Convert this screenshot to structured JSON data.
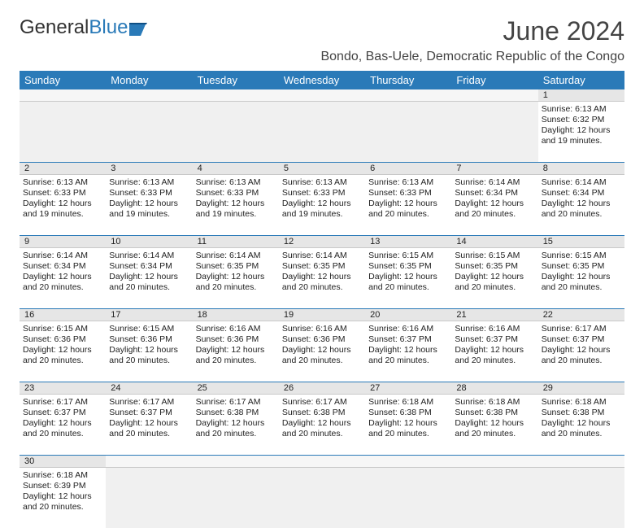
{
  "brand": {
    "part1": "General",
    "part2": "Blue",
    "color1": "#333333",
    "color2": "#2a7ab8"
  },
  "title": "June 2024",
  "location": "Bondo, Bas-Uele, Democratic Republic of the Congo",
  "colors": {
    "header_bg": "#2a7ab8",
    "header_fg": "#ffffff",
    "daynum_bg": "#e6e6e6",
    "empty_bg": "#f0f0f0",
    "week_divider": "#2a7ab8",
    "text": "#222222"
  },
  "day_headers": [
    "Sunday",
    "Monday",
    "Tuesday",
    "Wednesday",
    "Thursday",
    "Friday",
    "Saturday"
  ],
  "weeks": [
    {
      "daynums": [
        "",
        "",
        "",
        "",
        "",
        "",
        "1"
      ],
      "cells": [
        {
          "empty": true
        },
        {
          "empty": true
        },
        {
          "empty": true
        },
        {
          "empty": true
        },
        {
          "empty": true
        },
        {
          "empty": true
        },
        {
          "sunrise": "Sunrise: 6:13 AM",
          "sunset": "Sunset: 6:32 PM",
          "daylight": "Daylight: 12 hours and 19 minutes."
        }
      ]
    },
    {
      "daynums": [
        "2",
        "3",
        "4",
        "5",
        "6",
        "7",
        "8"
      ],
      "cells": [
        {
          "sunrise": "Sunrise: 6:13 AM",
          "sunset": "Sunset: 6:33 PM",
          "daylight": "Daylight: 12 hours and 19 minutes."
        },
        {
          "sunrise": "Sunrise: 6:13 AM",
          "sunset": "Sunset: 6:33 PM",
          "daylight": "Daylight: 12 hours and 19 minutes."
        },
        {
          "sunrise": "Sunrise: 6:13 AM",
          "sunset": "Sunset: 6:33 PM",
          "daylight": "Daylight: 12 hours and 19 minutes."
        },
        {
          "sunrise": "Sunrise: 6:13 AM",
          "sunset": "Sunset: 6:33 PM",
          "daylight": "Daylight: 12 hours and 19 minutes."
        },
        {
          "sunrise": "Sunrise: 6:13 AM",
          "sunset": "Sunset: 6:33 PM",
          "daylight": "Daylight: 12 hours and 20 minutes."
        },
        {
          "sunrise": "Sunrise: 6:14 AM",
          "sunset": "Sunset: 6:34 PM",
          "daylight": "Daylight: 12 hours and 20 minutes."
        },
        {
          "sunrise": "Sunrise: 6:14 AM",
          "sunset": "Sunset: 6:34 PM",
          "daylight": "Daylight: 12 hours and 20 minutes."
        }
      ]
    },
    {
      "daynums": [
        "9",
        "10",
        "11",
        "12",
        "13",
        "14",
        "15"
      ],
      "cells": [
        {
          "sunrise": "Sunrise: 6:14 AM",
          "sunset": "Sunset: 6:34 PM",
          "daylight": "Daylight: 12 hours and 20 minutes."
        },
        {
          "sunrise": "Sunrise: 6:14 AM",
          "sunset": "Sunset: 6:34 PM",
          "daylight": "Daylight: 12 hours and 20 minutes."
        },
        {
          "sunrise": "Sunrise: 6:14 AM",
          "sunset": "Sunset: 6:35 PM",
          "daylight": "Daylight: 12 hours and 20 minutes."
        },
        {
          "sunrise": "Sunrise: 6:14 AM",
          "sunset": "Sunset: 6:35 PM",
          "daylight": "Daylight: 12 hours and 20 minutes."
        },
        {
          "sunrise": "Sunrise: 6:15 AM",
          "sunset": "Sunset: 6:35 PM",
          "daylight": "Daylight: 12 hours and 20 minutes."
        },
        {
          "sunrise": "Sunrise: 6:15 AM",
          "sunset": "Sunset: 6:35 PM",
          "daylight": "Daylight: 12 hours and 20 minutes."
        },
        {
          "sunrise": "Sunrise: 6:15 AM",
          "sunset": "Sunset: 6:35 PM",
          "daylight": "Daylight: 12 hours and 20 minutes."
        }
      ]
    },
    {
      "daynums": [
        "16",
        "17",
        "18",
        "19",
        "20",
        "21",
        "22"
      ],
      "cells": [
        {
          "sunrise": "Sunrise: 6:15 AM",
          "sunset": "Sunset: 6:36 PM",
          "daylight": "Daylight: 12 hours and 20 minutes."
        },
        {
          "sunrise": "Sunrise: 6:15 AM",
          "sunset": "Sunset: 6:36 PM",
          "daylight": "Daylight: 12 hours and 20 minutes."
        },
        {
          "sunrise": "Sunrise: 6:16 AM",
          "sunset": "Sunset: 6:36 PM",
          "daylight": "Daylight: 12 hours and 20 minutes."
        },
        {
          "sunrise": "Sunrise: 6:16 AM",
          "sunset": "Sunset: 6:36 PM",
          "daylight": "Daylight: 12 hours and 20 minutes."
        },
        {
          "sunrise": "Sunrise: 6:16 AM",
          "sunset": "Sunset: 6:37 PM",
          "daylight": "Daylight: 12 hours and 20 minutes."
        },
        {
          "sunrise": "Sunrise: 6:16 AM",
          "sunset": "Sunset: 6:37 PM",
          "daylight": "Daylight: 12 hours and 20 minutes."
        },
        {
          "sunrise": "Sunrise: 6:17 AM",
          "sunset": "Sunset: 6:37 PM",
          "daylight": "Daylight: 12 hours and 20 minutes."
        }
      ]
    },
    {
      "daynums": [
        "23",
        "24",
        "25",
        "26",
        "27",
        "28",
        "29"
      ],
      "cells": [
        {
          "sunrise": "Sunrise: 6:17 AM",
          "sunset": "Sunset: 6:37 PM",
          "daylight": "Daylight: 12 hours and 20 minutes."
        },
        {
          "sunrise": "Sunrise: 6:17 AM",
          "sunset": "Sunset: 6:37 PM",
          "daylight": "Daylight: 12 hours and 20 minutes."
        },
        {
          "sunrise": "Sunrise: 6:17 AM",
          "sunset": "Sunset: 6:38 PM",
          "daylight": "Daylight: 12 hours and 20 minutes."
        },
        {
          "sunrise": "Sunrise: 6:17 AM",
          "sunset": "Sunset: 6:38 PM",
          "daylight": "Daylight: 12 hours and 20 minutes."
        },
        {
          "sunrise": "Sunrise: 6:18 AM",
          "sunset": "Sunset: 6:38 PM",
          "daylight": "Daylight: 12 hours and 20 minutes."
        },
        {
          "sunrise": "Sunrise: 6:18 AM",
          "sunset": "Sunset: 6:38 PM",
          "daylight": "Daylight: 12 hours and 20 minutes."
        },
        {
          "sunrise": "Sunrise: 6:18 AM",
          "sunset": "Sunset: 6:38 PM",
          "daylight": "Daylight: 12 hours and 20 minutes."
        }
      ]
    },
    {
      "daynums": [
        "30",
        "",
        "",
        "",
        "",
        "",
        ""
      ],
      "cells": [
        {
          "sunrise": "Sunrise: 6:18 AM",
          "sunset": "Sunset: 6:39 PM",
          "daylight": "Daylight: 12 hours and 20 minutes."
        },
        {
          "empty": true
        },
        {
          "empty": true
        },
        {
          "empty": true
        },
        {
          "empty": true
        },
        {
          "empty": true
        },
        {
          "empty": true
        }
      ]
    }
  ]
}
